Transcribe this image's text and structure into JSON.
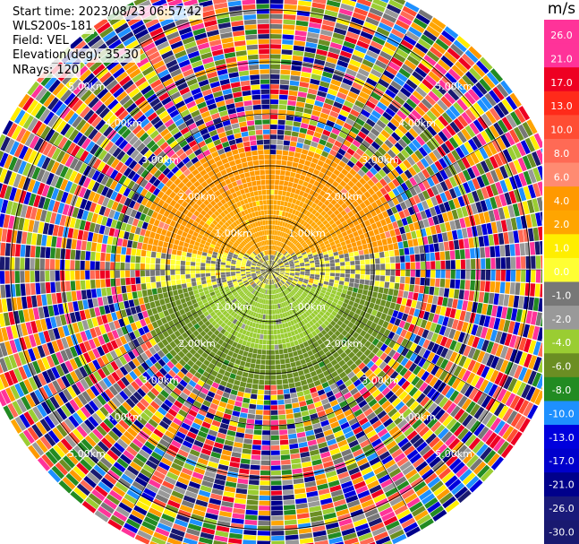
{
  "header": {
    "start_time": "Start time: 2023/08/23 06:57:42",
    "instrument": "WLS200s-181",
    "field": "Field: VEL",
    "elevation": "Elevation(deg): 35.30",
    "nrays": "NRays: 120"
  },
  "chart_data": {
    "type": "heatmap",
    "subtype": "radar-ppi",
    "field": "VEL",
    "units": "m/s",
    "nrays": 120,
    "elevation_deg": 35.3,
    "range_rings_km": [
      1.0,
      2.0,
      3.0,
      4.0,
      5.0
    ],
    "range_ring_labels": [
      "1.00km",
      "2.00km",
      "3.00km",
      "4.00km",
      "5.00km"
    ],
    "max_range_km": 5.8,
    "spoke_angles_deg": [
      0,
      30,
      60,
      90,
      120,
      150,
      180,
      210,
      240,
      270,
      300,
      330
    ],
    "colorbar": {
      "label": "m/s",
      "tick_labels": [
        "26.0",
        "21.0",
        "17.0",
        "13.0",
        "10.0",
        "8.0",
        "6.0",
        "4.0",
        "2.0",
        "1.0",
        "0.0",
        "-1.0",
        "-2.0",
        "-4.0",
        "-6.0",
        "-8.0",
        "-10.0",
        "-13.0",
        "-17.0",
        "-21.0",
        "-26.0",
        "-30.0"
      ],
      "bin_edges": [
        30,
        26,
        21,
        17,
        13,
        10,
        8,
        6,
        4,
        2,
        1,
        0,
        -1,
        -2,
        -4,
        -6,
        -8,
        -10,
        -13,
        -17,
        -21,
        -26,
        -30
      ],
      "colors": [
        "#ff3399",
        "#ff3399",
        "#ee0022",
        "#ff2a1a",
        "#ff4d33",
        "#ff6a55",
        "#ff8b72",
        "#ff9900",
        "#ffa500",
        "#ffee00",
        "#ffff33",
        "#777777",
        "#999999",
        "#9acd32",
        "#6b8e23",
        "#228b22",
        "#1e90ff",
        "#0000dd",
        "#0000cc",
        "#00008b",
        "#1a1a7a",
        "#191970"
      ]
    },
    "observed_pattern": [
      {
        "region": "north sector, inner 1.5 km",
        "velocity_ms": 3.0
      },
      {
        "region": "north sector, 1.5-2.5 km",
        "velocity_ms": 5.0
      },
      {
        "region": "east-west band near center",
        "velocity_ms": 0.0
      },
      {
        "region": "south sector, inner 1.5 km",
        "velocity_ms": -3.0
      },
      {
        "region": "south sector, 1.5-2.6 km",
        "velocity_ms": -5.0
      },
      {
        "region": "beyond 2.6 km, all azimuths",
        "velocity_ms": "noise"
      }
    ]
  }
}
